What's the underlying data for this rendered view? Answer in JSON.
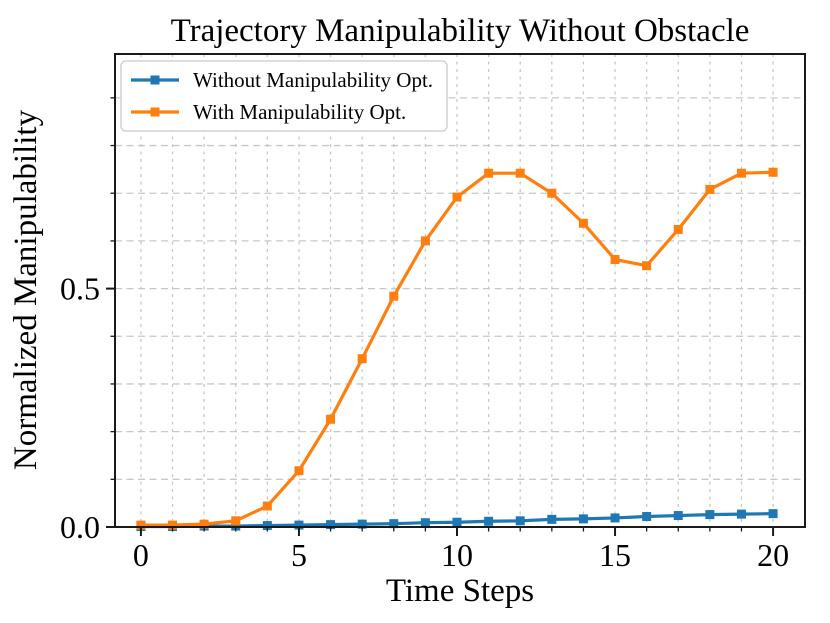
{
  "figure": {
    "background_color": "#ffffff",
    "spine_color": "#1a1a1a",
    "grid_color": "#c8c8c8"
  },
  "chart_data": {
    "type": "line",
    "title": "Trajectory Manipulability Without Obstacle",
    "xlabel": "Time Steps",
    "ylabel": "Normalized Manipulability",
    "x": [
      0,
      1,
      2,
      3,
      4,
      5,
      6,
      7,
      8,
      9,
      10,
      11,
      12,
      13,
      14,
      15,
      16,
      17,
      18,
      19,
      20
    ],
    "series": [
      {
        "name": "Without Manipulability Opt.",
        "color": "#1f77b4",
        "marker": "square",
        "values": [
          0.001,
          0.001,
          0.002,
          0.002,
          0.003,
          0.004,
          0.005,
          0.006,
          0.007,
          0.009,
          0.01,
          0.012,
          0.013,
          0.016,
          0.017,
          0.019,
          0.022,
          0.024,
          0.026,
          0.027,
          0.028
        ]
      },
      {
        "name": "With Manipulability Opt.",
        "color": "#ff7f0e",
        "marker": "square",
        "values": [
          0.004,
          0.004,
          0.006,
          0.013,
          0.044,
          0.118,
          0.226,
          0.353,
          0.484,
          0.6,
          0.692,
          0.742,
          0.742,
          0.7,
          0.637,
          0.561,
          0.548,
          0.624,
          0.708,
          0.742,
          0.744
        ]
      }
    ],
    "xlim": [
      -0.82,
      21.01
    ],
    "ylim": [
      0,
      0.992
    ],
    "xticks": {
      "values": [
        0,
        5,
        10,
        15,
        20
      ],
      "labels": [
        "0",
        "5",
        "10",
        "15",
        "20"
      ]
    },
    "yticks": {
      "values": [
        0.0,
        0.5
      ],
      "labels": [
        "0.0",
        "0.5"
      ]
    },
    "minor_xtick_step": 1,
    "minor_ytick_step": 0.1,
    "grid": {
      "x_interval": 1,
      "y_interval": 0.1,
      "style": "dashed",
      "on": true
    },
    "legend": {
      "position": "upper left"
    }
  }
}
